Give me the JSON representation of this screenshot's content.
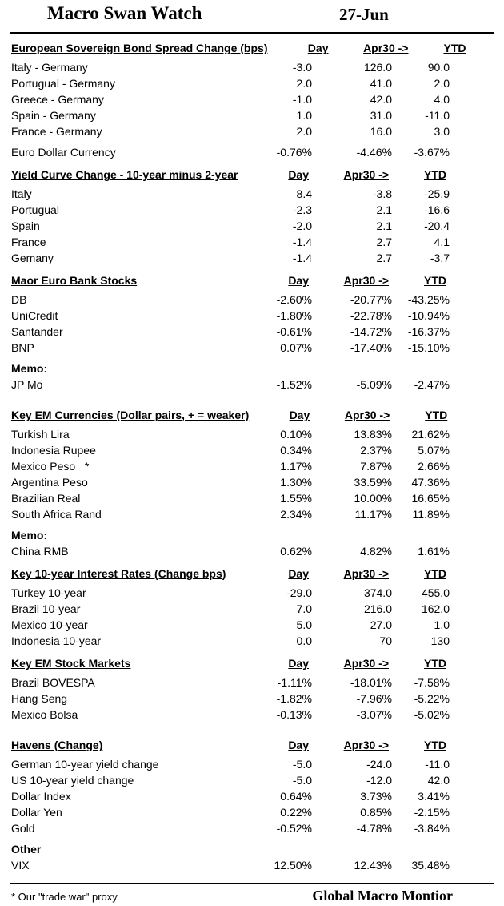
{
  "report": {
    "title": "Macro Swan Watch",
    "date": "27-Jun"
  },
  "columns": [
    "Day",
    "Apr30 ->",
    "YTD"
  ],
  "sections": [
    {
      "title": "European Sovereign Bond Spread Change (bps)",
      "rows": [
        {
          "label": "Italy - Germany",
          "values": [
            "-3.0",
            "126.0",
            "90.0"
          ]
        },
        {
          "label": "Portugual - Germany",
          "values": [
            "2.0",
            "41.0",
            "2.0"
          ]
        },
        {
          "label": "Greece - Germany",
          "values": [
            "-1.0",
            "42.0",
            "4.0"
          ]
        },
        {
          "label": "Spain - Germany",
          "values": [
            "1.0",
            "31.0",
            "-11.0"
          ]
        },
        {
          "label": "France - Germany",
          "values": [
            "2.0",
            "16.0",
            "3.0"
          ]
        },
        {
          "label": "Euro Dollar Currency",
          "values": [
            "-0.76%",
            "-4.46%",
            "-3.67%"
          ],
          "gap_before": true
        }
      ]
    },
    {
      "title": "Yield Curve Change - 10-year minus 2-year",
      "rows": [
        {
          "label": "Italy",
          "values": [
            "8.4",
            "-3.8",
            "-25.9"
          ]
        },
        {
          "label": "Portugual",
          "values": [
            "-2.3",
            "2.1",
            "-16.6"
          ]
        },
        {
          "label": "Spain",
          "values": [
            "-2.0",
            "2.1",
            "-20.4"
          ]
        },
        {
          "label": "France",
          "values": [
            "-1.4",
            "2.7",
            "4.1"
          ]
        },
        {
          "label": "Gemany",
          "values": [
            "-1.4",
            "2.7",
            "-3.7"
          ]
        }
      ]
    },
    {
      "title": "Maor Euro Bank Stocks",
      "rows": [
        {
          "label": "DB",
          "values": [
            "-2.60%",
            "-20.77%",
            "-43.25%"
          ]
        },
        {
          "label": "UniCredit",
          "values": [
            "-1.80%",
            "-22.78%",
            "-10.94%"
          ]
        },
        {
          "label": "Santander",
          "values": [
            "-0.61%",
            "-14.72%",
            "-16.37%"
          ]
        },
        {
          "label": "BNP",
          "values": [
            "0.07%",
            "-17.40%",
            "-15.10%"
          ]
        },
        {
          "label": "Memo:",
          "values": [
            "",
            "",
            ""
          ],
          "bold": true,
          "gap_before": true
        },
        {
          "label": "JP Mo",
          "values": [
            "-1.52%",
            "-5.09%",
            "-2.47%"
          ]
        }
      ]
    },
    {
      "title": "Key EM Currencies (Dollar pairs, + = weaker)",
      "rows": [
        {
          "label": "Turkish Lira",
          "values": [
            "0.10%",
            "13.83%",
            "21.62%"
          ]
        },
        {
          "label": "Indonesia Rupee",
          "values": [
            "0.34%",
            "2.37%",
            "5.07%"
          ]
        },
        {
          "label": "Mexico Peso   *",
          "values": [
            "1.17%",
            "7.87%",
            "2.66%"
          ]
        },
        {
          "label": "Argentina Peso",
          "values": [
            "1.30%",
            "33.59%",
            "47.36%"
          ]
        },
        {
          "label": "Brazilian Real",
          "values": [
            "1.55%",
            "10.00%",
            "16.65%"
          ]
        },
        {
          "label": "South Africa Rand",
          "values": [
            "2.34%",
            "11.17%",
            "11.89%"
          ]
        },
        {
          "label": "Memo:",
          "values": [
            "",
            "",
            ""
          ],
          "bold": true,
          "gap_before": true
        },
        {
          "label": "China RMB",
          "values": [
            "0.62%",
            "4.82%",
            "1.61%"
          ]
        }
      ]
    },
    {
      "title": "Key 10-year Interest Rates (Change bps)",
      "rows": [
        {
          "label": "Turkey 10-year",
          "values": [
            "-29.0",
            "374.0",
            "455.0"
          ]
        },
        {
          "label": "Brazil 10-year",
          "values": [
            "7.0",
            "216.0",
            "162.0"
          ]
        },
        {
          "label": "Mexico 10-year",
          "values": [
            "5.0",
            "27.0",
            "1.0"
          ]
        },
        {
          "label": "Indonesia 10-year",
          "values": [
            "0.0",
            "70",
            "130"
          ]
        }
      ]
    },
    {
      "title": "Key EM Stock Markets",
      "rows": [
        {
          "label": "Brazil BOVESPA",
          "values": [
            "-1.11%",
            "-18.01%",
            "-7.58%"
          ]
        },
        {
          "label": "Hang Seng",
          "values": [
            "-1.82%",
            "-7.96%",
            "-5.22%"
          ]
        },
        {
          "label": "Mexico Bolsa",
          "values": [
            "-0.13%",
            "-3.07%",
            "-5.02%"
          ]
        }
      ]
    },
    {
      "title": "Havens (Change)",
      "rows": [
        {
          "label": "German 10-year yield change",
          "values": [
            "-5.0",
            "-24.0",
            "-11.0"
          ]
        },
        {
          "label": "US 10-year yield change",
          "values": [
            "-5.0",
            "-12.0",
            "42.0"
          ]
        },
        {
          "label": "Dollar Index",
          "values": [
            "0.64%",
            "3.73%",
            "3.41%"
          ]
        },
        {
          "label": "Dollar Yen",
          "values": [
            "0.22%",
            "0.85%",
            "-2.15%"
          ]
        },
        {
          "label": "Gold",
          "values": [
            "-0.52%",
            "-4.78%",
            "-3.84%"
          ]
        },
        {
          "label": "Other",
          "values": [
            "",
            "",
            ""
          ],
          "bold": true,
          "gap_before": true
        },
        {
          "label": "VIX",
          "values": [
            "12.50%",
            "12.43%",
            "35.48%"
          ]
        }
      ]
    }
  ],
  "footer": {
    "note": "* Our \"trade war\" proxy",
    "brand": "Global Macro Montior"
  },
  "colors": {
    "background": "#ffffff",
    "text": "#000000",
    "rule": "#000000"
  }
}
